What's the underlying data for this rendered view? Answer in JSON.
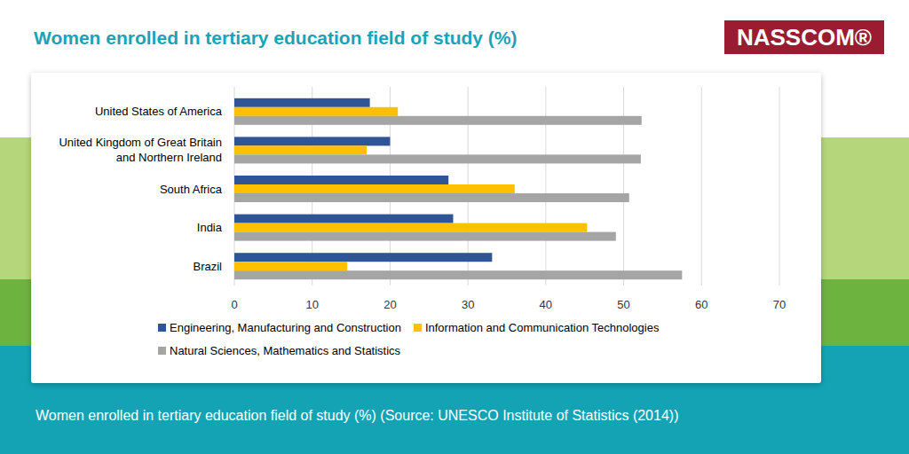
{
  "chart_data": {
    "type": "bar",
    "orientation": "horizontal",
    "title": "Women enrolled in tertiary education field of study (%)",
    "caption": "Women enrolled in tertiary education field of study (%) (Source: UNESCO Institute of Statistics (2014))",
    "brand": "NASSCOM®",
    "categories": [
      "United States of America",
      "United Kingdom of Great Britain and Northern Ireland",
      "South Africa",
      "India",
      "Brazil"
    ],
    "series": [
      {
        "name": "Engineering, Manufacturing and Construction",
        "color": "#2f5597",
        "values": [
          17.4,
          20,
          27.5,
          28.1,
          33.1
        ]
      },
      {
        "name": "Information and Communication Technologies",
        "color": "#ffc000",
        "values": [
          21,
          17,
          36,
          45.3,
          14.5
        ]
      },
      {
        "name": "Natural Sciences, Mathematics and Statistics",
        "color": "#a5a5a5",
        "values": [
          52.3,
          52.2,
          50.7,
          49,
          57.5
        ]
      }
    ],
    "xlim": [
      0,
      70
    ],
    "xticks": [
      0,
      10,
      20,
      30,
      40,
      50,
      60,
      70
    ],
    "grid": true,
    "legend": "bottom"
  }
}
